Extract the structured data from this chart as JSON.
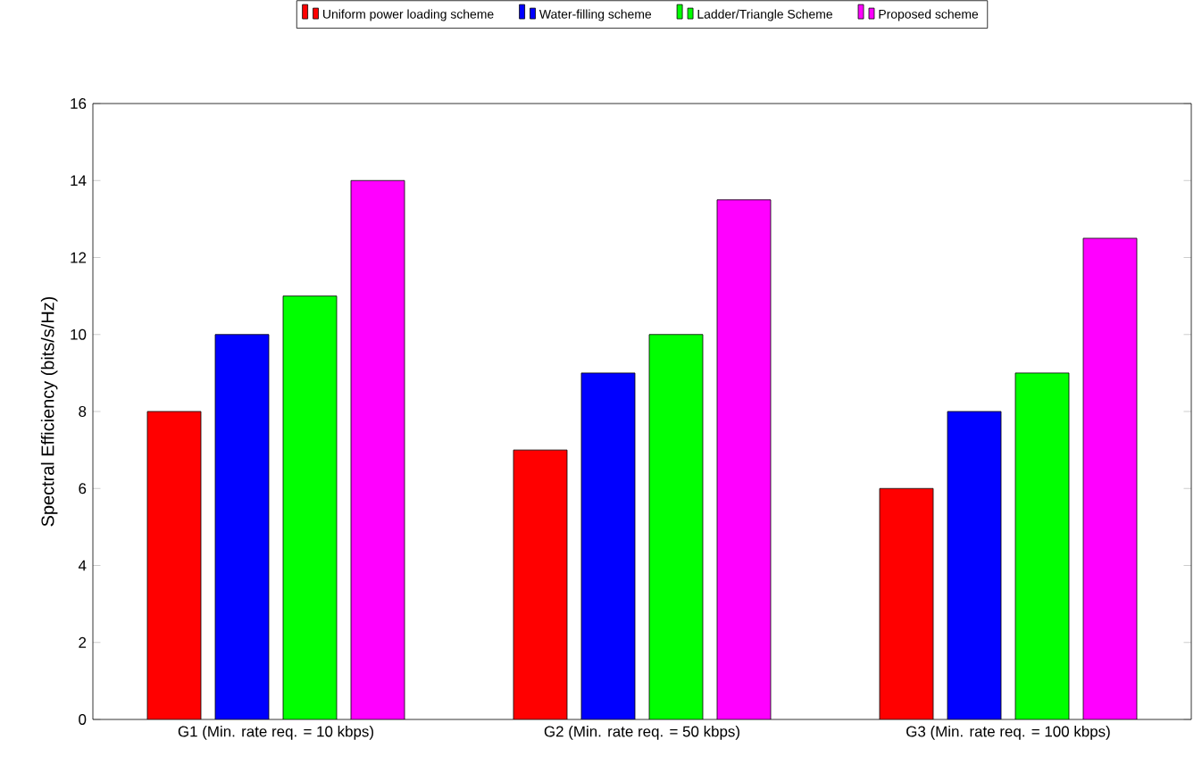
{
  "chart_data": {
    "type": "bar",
    "ylabel": "Spectral Efficiency (bits/s/Hz)",
    "categories": [
      "G1 (Min. rate req. = 10 kbps)",
      "G2 (Min. rate req. = 50 kbps)",
      "G3 (Min. rate req. = 100 kbps)"
    ],
    "series": [
      {
        "name": "Uniform power loading scheme",
        "color": "#ff0000",
        "values": [
          8,
          7,
          6
        ]
      },
      {
        "name": "Water-filling scheme",
        "color": "#0000ff",
        "values": [
          10,
          9,
          8
        ]
      },
      {
        "name": "Ladder/Triangle Scheme",
        "color": "#00ff00",
        "values": [
          11,
          10,
          9
        ]
      },
      {
        "name": "Proposed scheme",
        "color": "#ff00ff",
        "values": [
          14,
          13.5,
          12.5
        ]
      }
    ],
    "ylim": [
      0,
      16
    ],
    "yticks": [
      0,
      2,
      4,
      6,
      8,
      10,
      12,
      14,
      16
    ],
    "grid": false,
    "legend": "top"
  }
}
